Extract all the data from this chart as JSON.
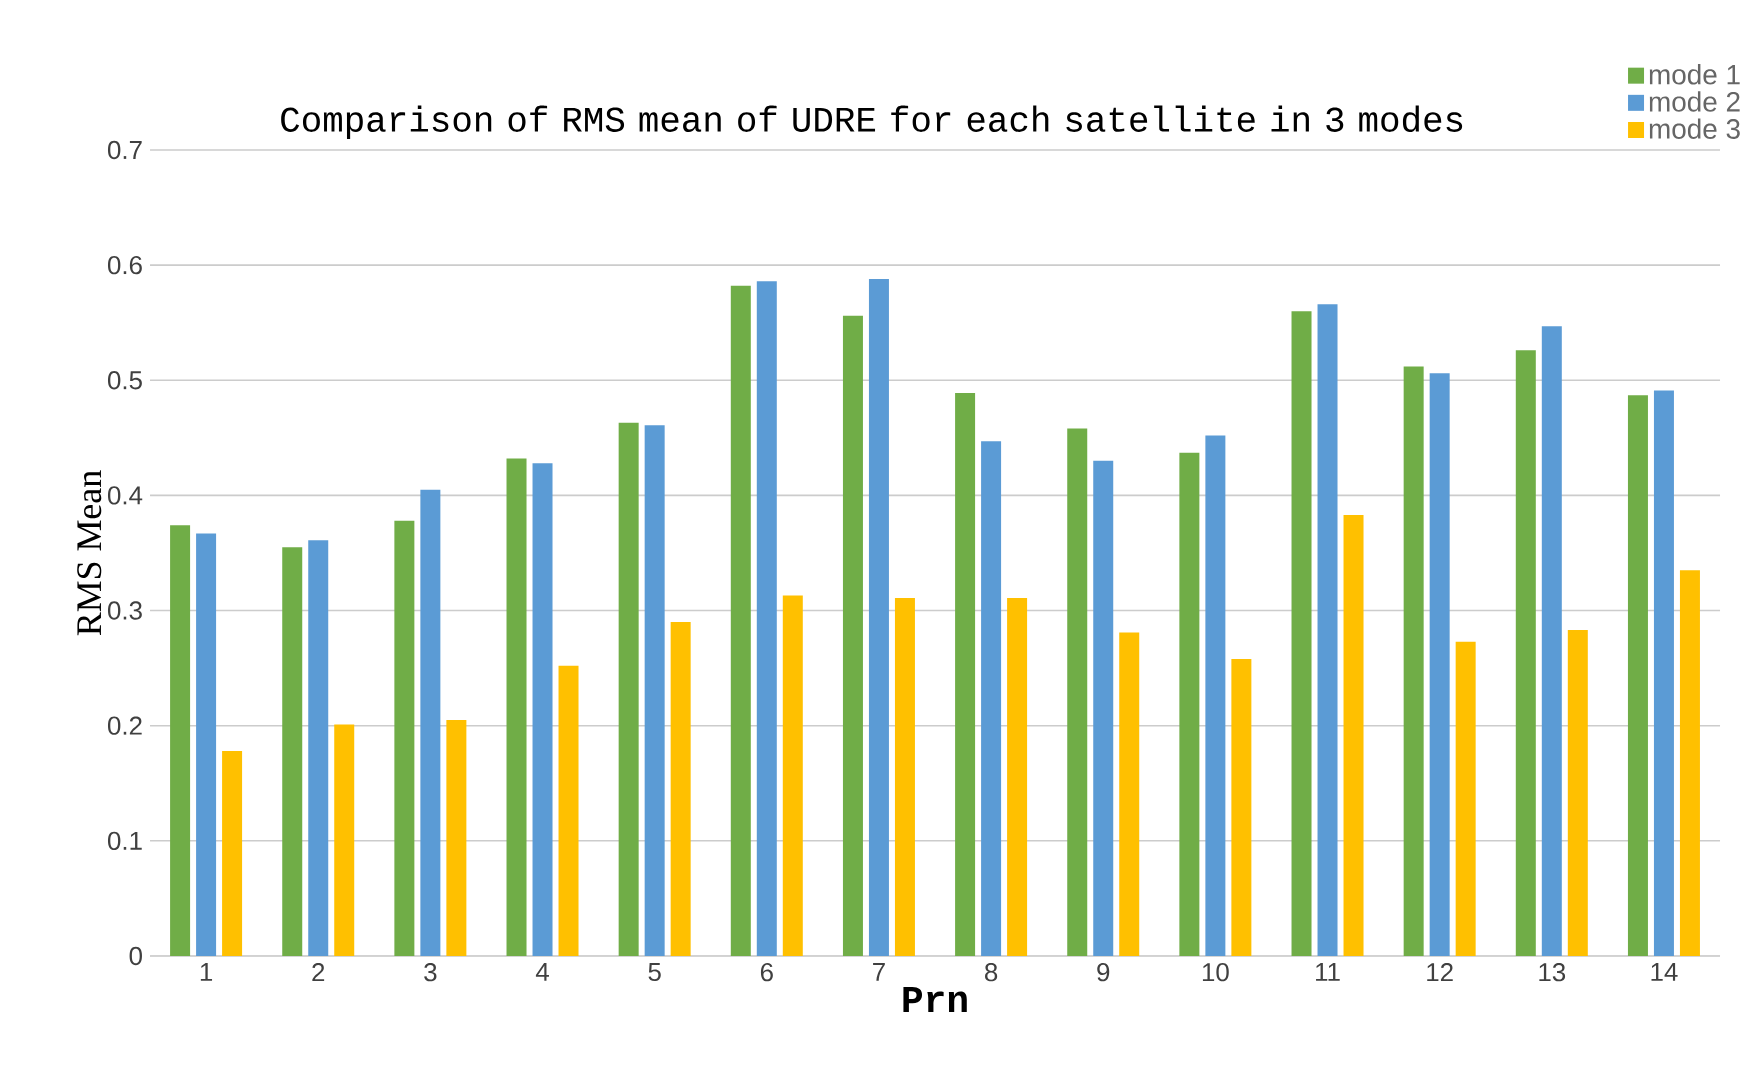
{
  "chart_data": {
    "type": "bar",
    "title": "Comparison of RMS mean of UDRE for each satellite in 3 modes",
    "xlabel": "Prn",
    "ylabel": "RMS Mean",
    "categories": [
      "1",
      "2",
      "3",
      "4",
      "5",
      "6",
      "7",
      "8",
      "9",
      "10",
      "11",
      "12",
      "13",
      "14"
    ],
    "series": [
      {
        "name": "mode 1",
        "color": "#70ad47",
        "values": [
          0.374,
          0.355,
          0.378,
          0.432,
          0.463,
          0.582,
          0.556,
          0.489,
          0.458,
          0.437,
          0.56,
          0.512,
          0.526,
          0.487
        ]
      },
      {
        "name": "mode 2",
        "color": "#5b9bd5",
        "values": [
          0.367,
          0.361,
          0.405,
          0.428,
          0.461,
          0.586,
          0.588,
          0.447,
          0.43,
          0.452,
          0.566,
          0.506,
          0.547,
          0.491
        ]
      },
      {
        "name": "mode 3",
        "color": "#ffc000",
        "values": [
          0.178,
          0.201,
          0.205,
          0.252,
          0.29,
          0.313,
          0.311,
          0.311,
          0.281,
          0.258,
          0.383,
          0.273,
          0.283,
          0.335
        ]
      }
    ],
    "ylim": [
      0,
      0.7
    ],
    "yticks": [
      0,
      0.1,
      0.2,
      0.3,
      0.4,
      0.5,
      0.6,
      0.7
    ],
    "grid": "y",
    "legend": "top right"
  }
}
